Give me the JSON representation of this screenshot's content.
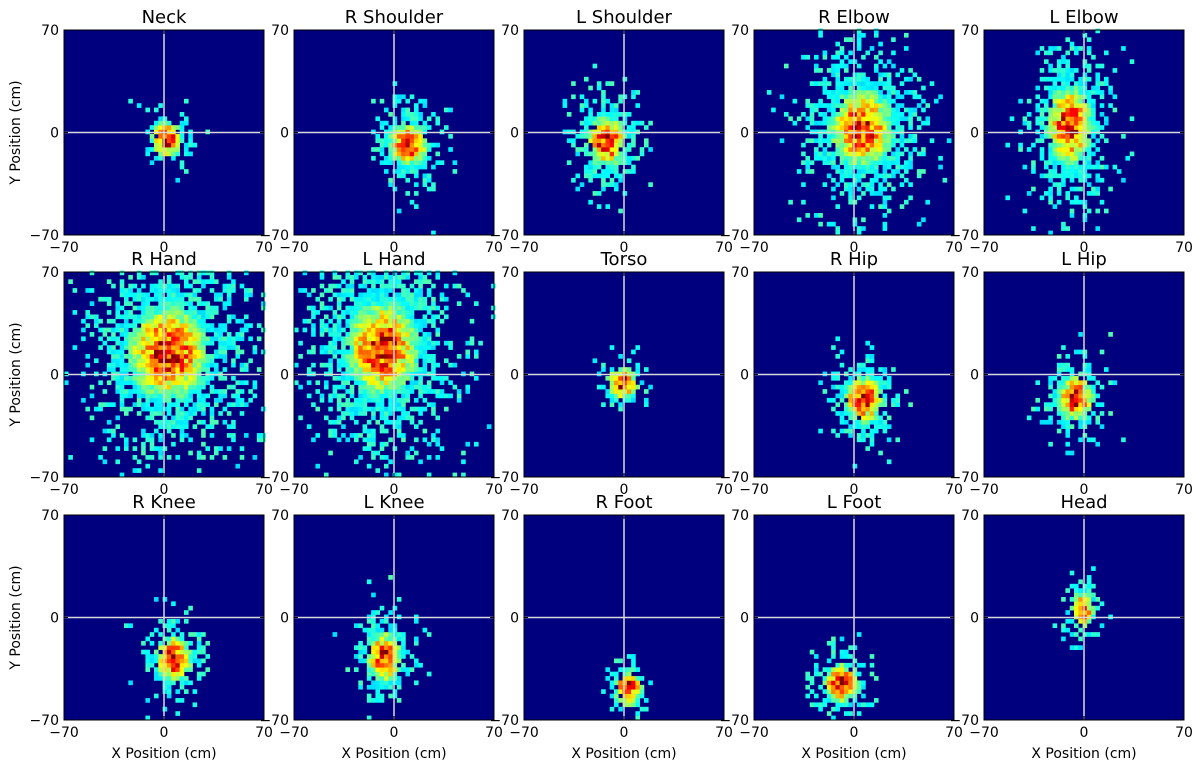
{
  "chart_data": {
    "type": "heatmap",
    "description_type": "2D histogram grid",
    "grid": {
      "rows": 3,
      "cols": 5
    },
    "xlabel": "X Position (cm)",
    "ylabel": "Y Position (cm)",
    "xlim": [
      -70,
      70
    ],
    "ylim": [
      -70,
      70
    ],
    "xticks": [
      "−70",
      "0",
      "70"
    ],
    "yticks": [
      "70",
      "0",
      "−70"
    ],
    "reference_lines": {
      "x": 0,
      "y": 0,
      "color": "#d9d9d9"
    },
    "colormap": "jet",
    "background_color": "#00007f",
    "panels": [
      {
        "title": "Neck",
        "center": [
          2,
          -5
        ],
        "spread": [
          7,
          8
        ],
        "extent": [
          1.3,
          1.3
        ]
      },
      {
        "title": "R Shoulder",
        "center": [
          10,
          -8
        ],
        "spread": [
          9,
          9
        ],
        "extent": [
          1.4,
          1.8
        ]
      },
      {
        "title": "L Shoulder",
        "center": [
          -12,
          -6
        ],
        "spread": [
          9,
          11
        ],
        "extent": [
          1.4,
          1.8
        ]
      },
      {
        "title": "R Elbow",
        "center": [
          5,
          3
        ],
        "spread": [
          14,
          17
        ],
        "extent": [
          1.6,
          1.9
        ]
      },
      {
        "title": "L Elbow",
        "center": [
          -10,
          5
        ],
        "spread": [
          10,
          17
        ],
        "extent": [
          1.5,
          1.9
        ]
      },
      {
        "title": "R Hand",
        "center": [
          3,
          15
        ],
        "spread": [
          18,
          20
        ],
        "extent": [
          1.7,
          2.0
        ]
      },
      {
        "title": "L Hand",
        "center": [
          -8,
          18
        ],
        "spread": [
          16,
          20
        ],
        "extent": [
          1.7,
          2.0
        ]
      },
      {
        "title": "Torso",
        "center": [
          -1,
          -6
        ],
        "spread": [
          7,
          7
        ],
        "extent": [
          1.3,
          1.4
        ]
      },
      {
        "title": "R Hip",
        "center": [
          7,
          -17
        ],
        "spread": [
          9,
          10
        ],
        "extent": [
          1.4,
          1.6
        ]
      },
      {
        "title": "L Hip",
        "center": [
          -6,
          -16
        ],
        "spread": [
          8,
          10
        ],
        "extent": [
          1.4,
          1.6
        ]
      },
      {
        "title": "R Knee",
        "center": [
          7,
          -28
        ],
        "spread": [
          8,
          10
        ],
        "extent": [
          1.4,
          1.5
        ]
      },
      {
        "title": "L Knee",
        "center": [
          -7,
          -27
        ],
        "spread": [
          8,
          11
        ],
        "extent": [
          1.3,
          1.6
        ]
      },
      {
        "title": "R Foot",
        "center": [
          3,
          -48
        ],
        "spread": [
          6,
          8
        ],
        "extent": [
          1.3,
          1.4
        ]
      },
      {
        "title": "L Foot",
        "center": [
          -9,
          -45
        ],
        "spread": [
          8,
          9
        ],
        "extent": [
          1.4,
          1.5
        ]
      },
      {
        "title": "Head",
        "center": [
          -1,
          5
        ],
        "spread": [
          5,
          8
        ],
        "extent": [
          1.3,
          1.5
        ]
      }
    ]
  }
}
